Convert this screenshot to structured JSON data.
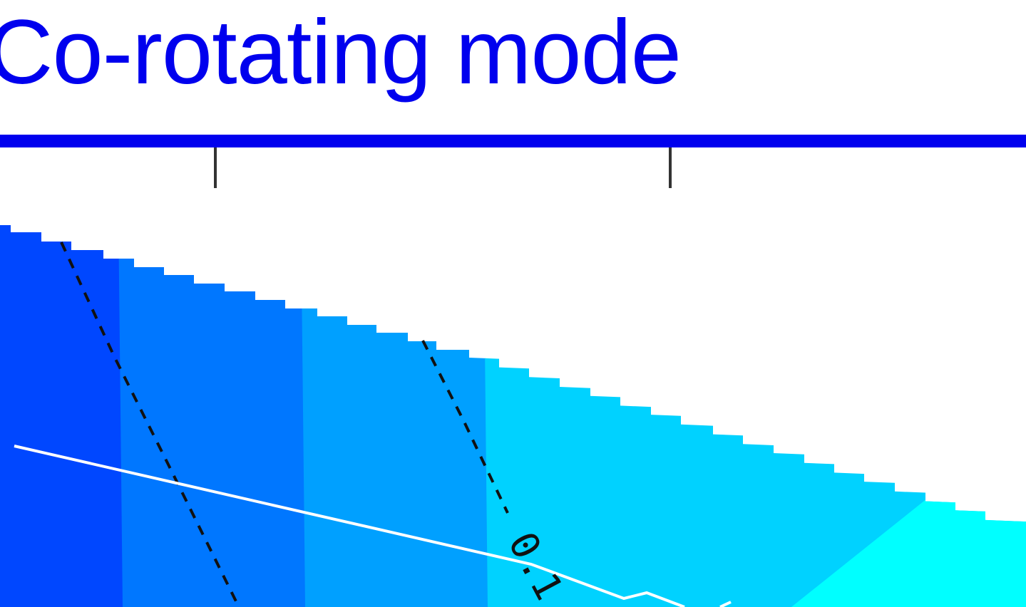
{
  "slide": {
    "title": "Co-rotating mode",
    "title_color": "#0000ee"
  },
  "chart_data": {
    "type": "heatmap",
    "title": "",
    "xlabel": "",
    "ylabel": "",
    "grid": false,
    "bands": [
      {
        "level": 1,
        "color": "#0047ff"
      },
      {
        "level": 2,
        "color": "#0077ff"
      },
      {
        "level": 3,
        "color": "#00a0ff"
      },
      {
        "level": 4,
        "color": "#00d2ff"
      },
      {
        "level": 5,
        "color": "#00ffff"
      }
    ],
    "contour_lines": [
      {
        "style": "dashed",
        "color": "#111111",
        "label": ""
      },
      {
        "style": "dashed",
        "color": "#111111",
        "label": "0.1"
      }
    ],
    "overlay_line": {
      "color": "#ffffff",
      "style": "solid"
    },
    "contour_label_text": "0.1"
  }
}
